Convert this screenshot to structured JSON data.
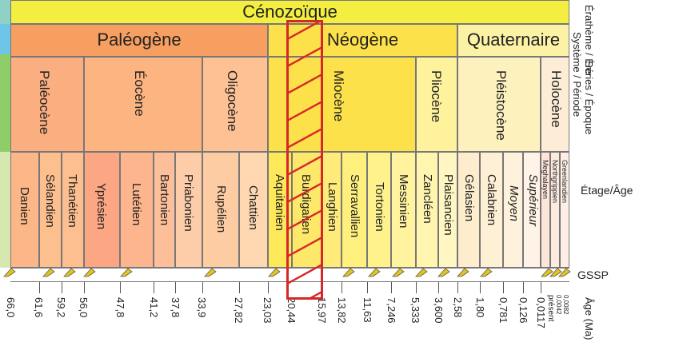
{
  "era": "Cénozoïque",
  "systems": [
    "Paléogène",
    "Néogène",
    "Quaternaire"
  ],
  "series": [
    "Paléocène",
    "Éocène",
    "Oligocène",
    "Miocène",
    "Pliocène",
    "Pléistocène",
    "Holocène"
  ],
  "stages": [
    "Danien",
    "Sélandien",
    "Thanétien",
    "Yprésien",
    "Lutétien",
    "Bartonien",
    "Priabonien",
    "Rupélien",
    "Chattien",
    "Aquitanien",
    "Burdigalien",
    "Langhien",
    "Serravallien",
    "Tortonien",
    "Messinien",
    "Zancléen",
    "Plaisancien",
    "Gélasien",
    "Calabrien",
    "Moyen",
    "Supérieur"
  ],
  "holocene_stages": [
    "Meghalayen",
    "Northgrippien",
    "Greenlandien"
  ],
  "ages": [
    "66,0",
    "61,6",
    "59,2",
    "56,0",
    "47,8",
    "41,2",
    "37,8",
    "33,9",
    "27,82",
    "23,03",
    "20,44",
    "15,97",
    "13,82",
    "11,63",
    "7,246",
    "5,333",
    "3,600",
    "2,58",
    "1,80",
    "0,781",
    "0,126",
    "0,0117"
  ],
  "present_ages": [
    "présent",
    "0,0042",
    "0,0082"
  ],
  "row_labels": {
    "erathem": "Érathème / Ère",
    "system": "Système / Période",
    "series": "Séries / Époque",
    "stage": "Étage/Âge",
    "gssp": "GSSP",
    "age": "Âge (Ma)"
  },
  "colors": {
    "era": "#f3ee3f",
    "paleogene": "#f79f61",
    "neogene": "#fde14a",
    "quaternaire": "#fbf2a5",
    "highlight": "#d62828"
  }
}
